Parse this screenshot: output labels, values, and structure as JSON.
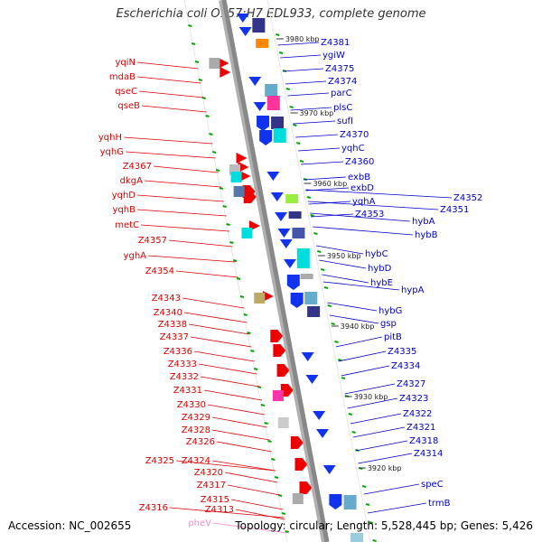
{
  "title": "Escherichia coli O157:H7 EDL933, complete genome",
  "footer": {
    "accession": "Accession: NC_002655",
    "topology": "Topology: circular; Length: 5,528,445 bp; Genes: 5,426"
  },
  "colors": {
    "left_labels": "#dd0000",
    "right_labels": "#0000cc",
    "trna_label": "#ff88cc",
    "backbone": "#888888",
    "tick": "#00aa00"
  },
  "ruler_labels": [
    "3980 kbp",
    "3970 kbp",
    "3960 kbp",
    "3950 kbp",
    "3940 kbp",
    "3930 kbp",
    "3920 kbp"
  ],
  "left_genes": [
    "yqiN",
    "mdaB",
    "qseC",
    "qseB",
    "yqhH",
    "yqhG",
    "Z4367",
    "dkgA",
    "yqhD",
    "yqhB",
    "metC",
    "Z4357",
    "yghA",
    "Z4354",
    "Z4343",
    "Z4340",
    "Z4338",
    "Z4337",
    "Z4336",
    "Z4333",
    "Z4332",
    "Z4331",
    "Z4330",
    "Z4329",
    "Z4328",
    "Z4326",
    "Z4325",
    "Z4324",
    "Z4320",
    "Z4317",
    "Z4315",
    "Z4316",
    "Z4313",
    "pheV"
  ],
  "right_genes": [
    "Z4381",
    "ygiW",
    "Z4375",
    "Z4374",
    "parC",
    "plsC",
    "sufI",
    "Z4370",
    "yqhC",
    "Z4360",
    "exbB",
    "exbD",
    "yqhA",
    "Z4353",
    "Z4352",
    "Z4351",
    "hybA",
    "hybB",
    "hybC",
    "hybD",
    "hybE",
    "hypA",
    "hybG",
    "gsp",
    "pitB",
    "Z4335",
    "Z4334",
    "Z4327",
    "Z4323",
    "Z4322",
    "Z4321",
    "Z4318",
    "Z4314",
    "speC",
    "trmB"
  ]
}
